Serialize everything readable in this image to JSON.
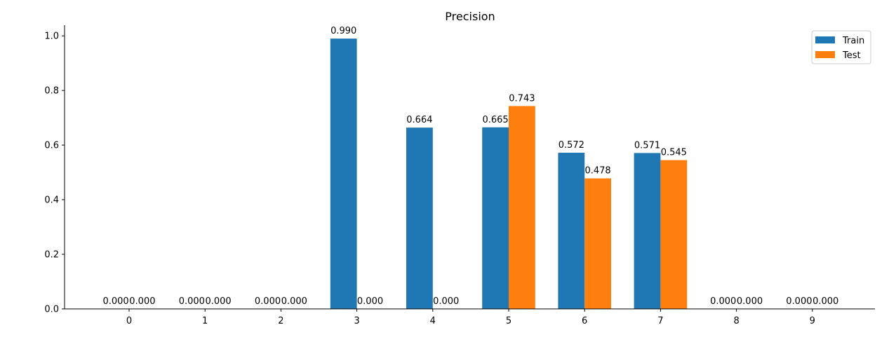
{
  "chart_data": {
    "type": "bar",
    "title": "Precision",
    "xlabel": "",
    "ylabel": "",
    "categories": [
      "0",
      "1",
      "2",
      "3",
      "4",
      "5",
      "6",
      "7",
      "8",
      "9"
    ],
    "series": [
      {
        "name": "Train",
        "color": "#1f77b4",
        "values": [
          0.0,
          0.0,
          0.0,
          0.99,
          0.664,
          0.665,
          0.572,
          0.571,
          0.0,
          0.0
        ],
        "labels": [
          "0.000",
          "0.000",
          "0.000",
          "0.990",
          "0.664",
          "0.665",
          "0.572",
          "0.571",
          "0.000",
          "0.000"
        ]
      },
      {
        "name": "Test",
        "color": "#ff7f0e",
        "values": [
          0.0,
          0.0,
          0.0,
          0.0,
          0.0,
          0.743,
          0.478,
          0.545,
          0.0,
          0.0
        ],
        "labels": [
          "0.000",
          "0.000",
          "0.000",
          "0.000",
          "0.000",
          "0.743",
          "0.478",
          "0.545",
          "0.000",
          "0.000"
        ]
      }
    ],
    "ylim": [
      0,
      1.039
    ],
    "yticks": [
      "0.0",
      "0.2",
      "0.4",
      "0.6",
      "0.8",
      "1.0"
    ],
    "grid": false,
    "legend_position": "top-right"
  }
}
